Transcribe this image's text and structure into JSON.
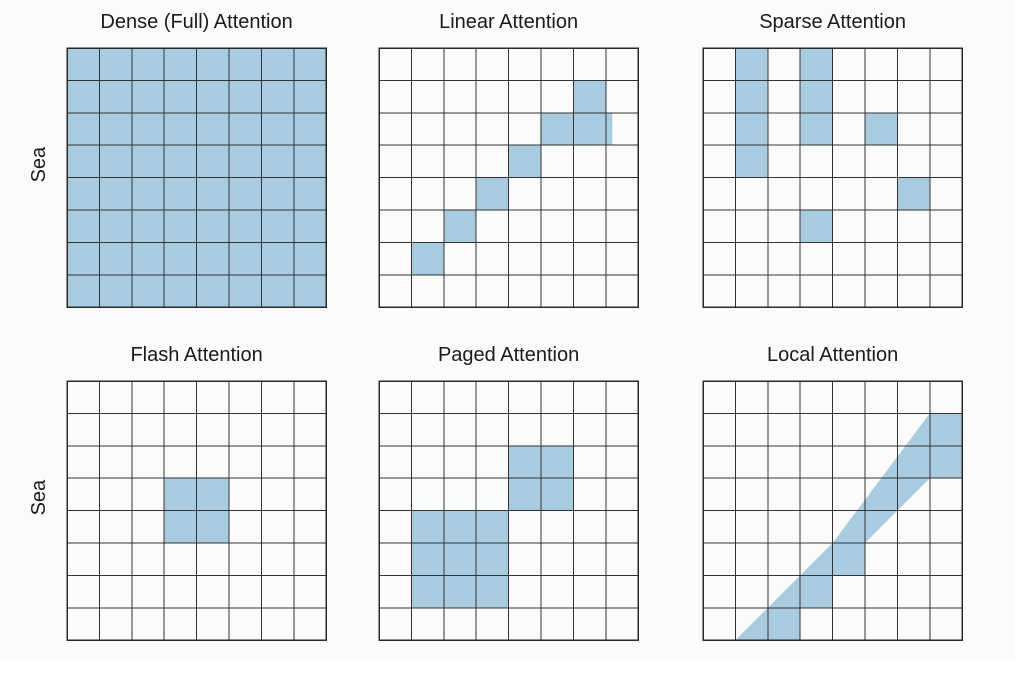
{
  "colors": {
    "shade": "#a9cbe0",
    "grid_line": "#333333",
    "background": "#fbfbfb"
  },
  "axis_label": "Sea",
  "panels": [
    {
      "title": "Dense (Full) Attention",
      "shaded_cells": "all",
      "show_axis_label": true
    },
    {
      "title": "Linear Attention",
      "shaded_cells": [
        [
          1,
          6
        ],
        [
          2,
          5
        ],
        [
          3,
          4
        ],
        [
          4,
          3
        ],
        [
          5,
          2
        ],
        [
          6,
          1
        ]
      ],
      "shaded_rects": [
        [
          6,
          2,
          7.2,
          3
        ]
      ],
      "show_axis_label": false
    },
    {
      "title": "Sparse Attention",
      "shaded_cells": [
        [
          1,
          0
        ],
        [
          1,
          1
        ],
        [
          1,
          2
        ],
        [
          1,
          3
        ],
        [
          3,
          0
        ],
        [
          3,
          1
        ],
        [
          3,
          2
        ],
        [
          5,
          2
        ],
        [
          6,
          4
        ],
        [
          3,
          5
        ]
      ],
      "show_axis_label": false
    },
    {
      "title": "Flash Attention",
      "shaded_cells": [
        [
          3,
          3
        ],
        [
          4,
          3
        ],
        [
          3,
          4
        ],
        [
          4,
          4
        ]
      ],
      "show_axis_label": true
    },
    {
      "title": "Paged Attention",
      "shaded_cells": [
        [
          4,
          2
        ],
        [
          5,
          2
        ],
        [
          4,
          3
        ],
        [
          5,
          3
        ],
        [
          1,
          4
        ],
        [
          2,
          4
        ],
        [
          3,
          4
        ],
        [
          1,
          5
        ],
        [
          2,
          5
        ],
        [
          3,
          5
        ],
        [
          1,
          6
        ],
        [
          2,
          6
        ],
        [
          3,
          6
        ]
      ],
      "show_axis_label": false
    },
    {
      "title": "Local Attention",
      "shaded_cells": [
        [
          2,
          5
        ],
        [
          3,
          4
        ],
        [
          4,
          3
        ],
        [
          5,
          2
        ],
        [
          6,
          1
        ],
        [
          7,
          0
        ],
        [
          7,
          1
        ],
        [
          6,
          2
        ],
        [
          5,
          3
        ],
        [
          4,
          4
        ],
        [
          3,
          5
        ],
        [
          2,
          6
        ],
        [
          1,
          7
        ],
        [
          2,
          7
        ],
        [
          3,
          6
        ],
        [
          4,
          5
        ],
        [
          1,
          6
        ],
        [
          0,
          7
        ]
      ],
      "show_axis_label": false
    }
  ]
}
